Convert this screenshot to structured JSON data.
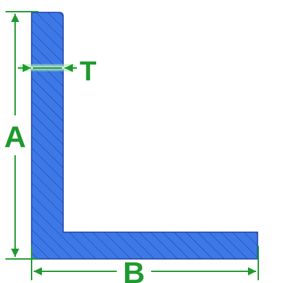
{
  "labels": {
    "height": "A",
    "width": "B",
    "thickness": "T"
  },
  "colors": {
    "profile_fill": "#3d79e6",
    "profile_edge": "#1b3fa6",
    "hatch": "#0f2f8f",
    "dimension": "#1e9a2e"
  }
}
